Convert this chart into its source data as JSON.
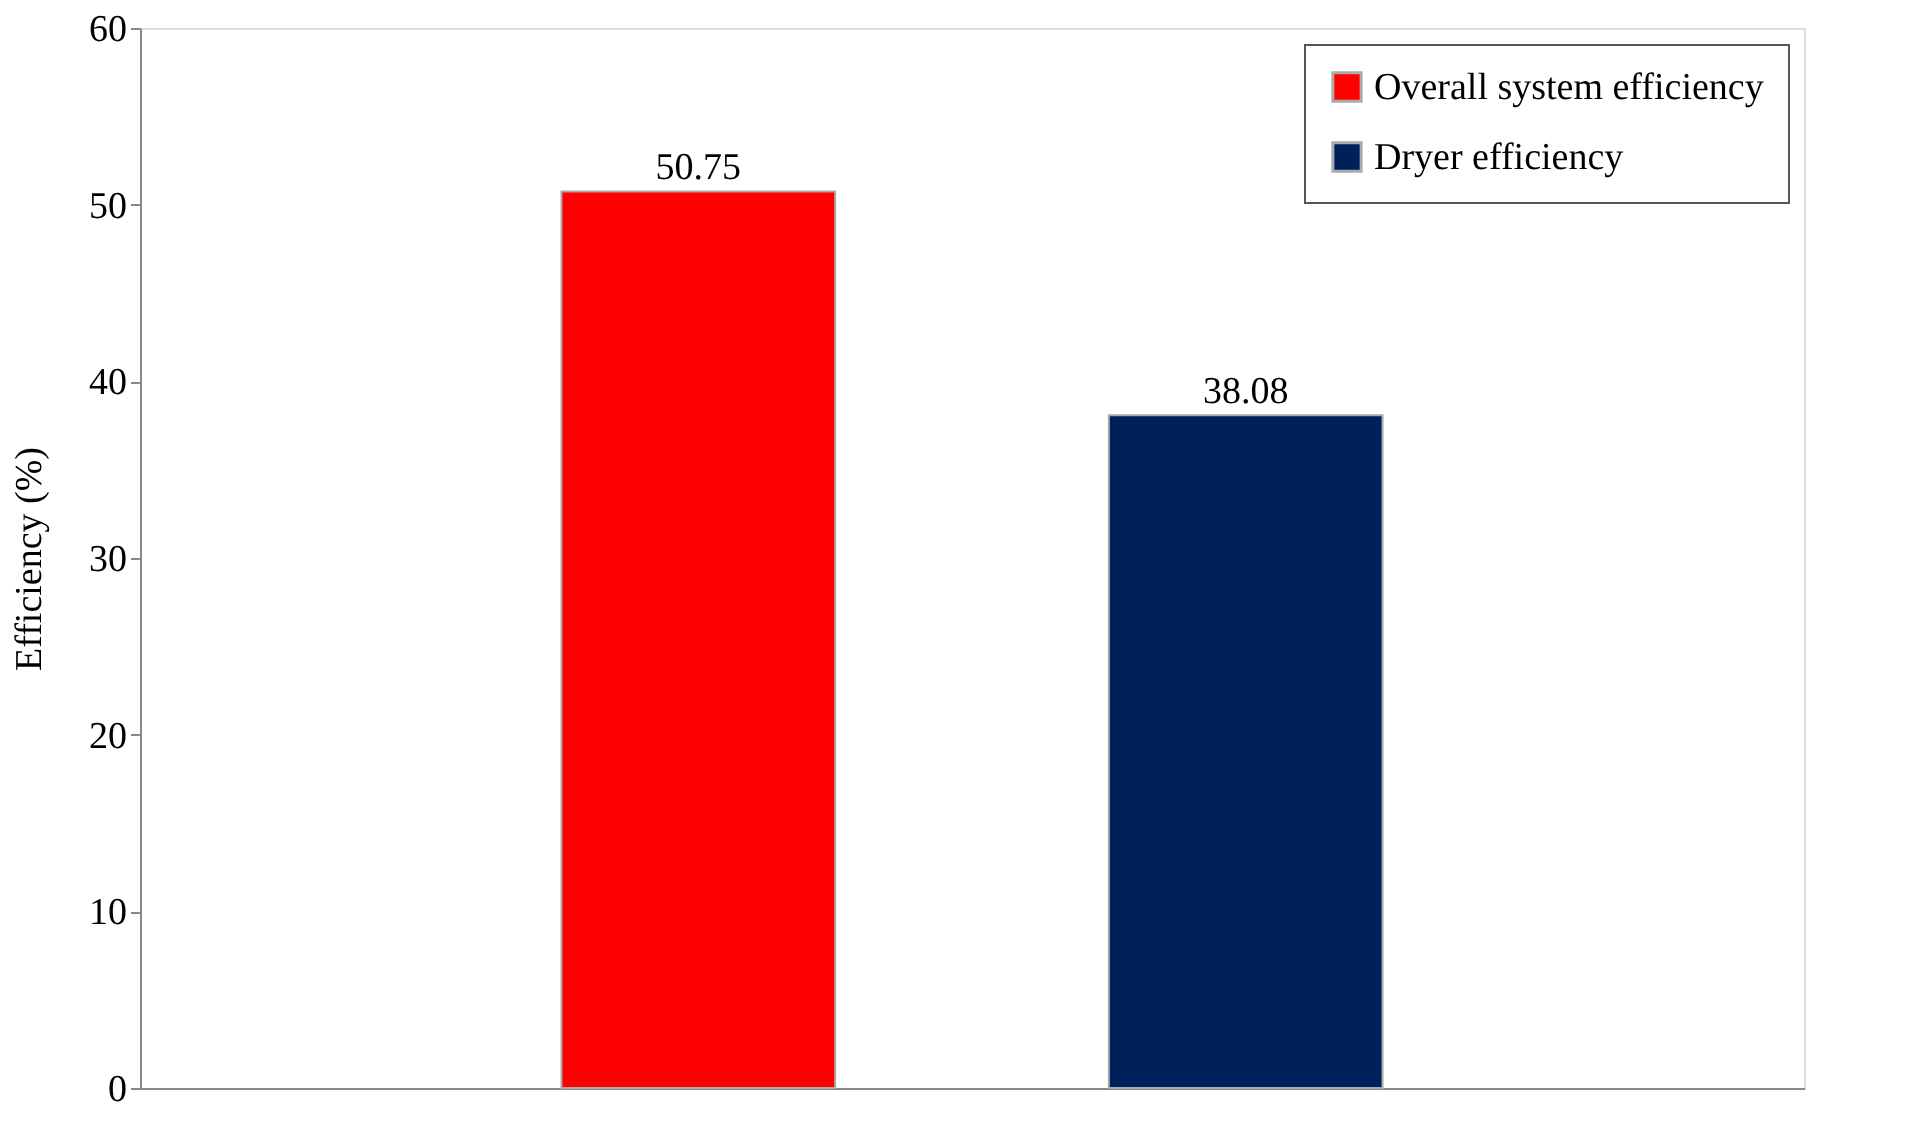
{
  "chart_data": {
    "type": "bar",
    "ylabel": "Efficiency (%)",
    "categories": [
      null
    ],
    "series": [
      {
        "name": "Overall system efficiency",
        "color": "#ff0000",
        "values": [
          50.75
        ]
      },
      {
        "name": "Dryer efficiency",
        "color": "#00205b",
        "values": [
          38.08
        ]
      }
    ],
    "ylim": [
      0,
      60
    ],
    "yticks": [
      0,
      10,
      20,
      30,
      40,
      50,
      60
    ],
    "grid": false,
    "legend": "top right",
    "data_labels": true,
    "tick_labels": "y"
  }
}
